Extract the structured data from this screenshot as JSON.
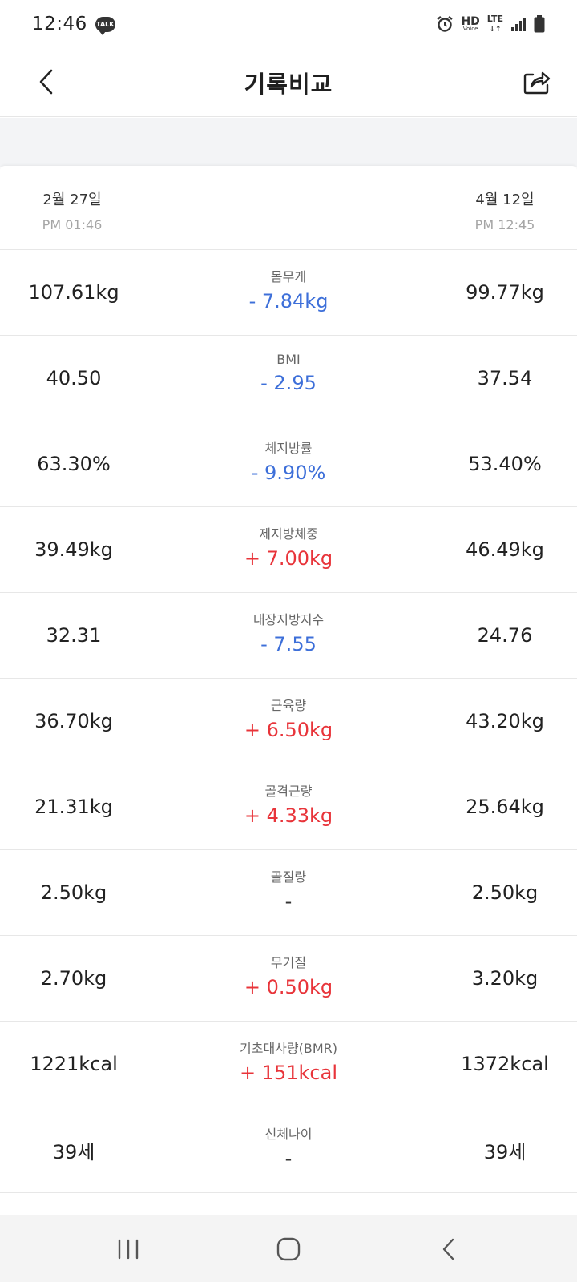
{
  "status_bar": {
    "time": "12:46",
    "talk_badge": "TALK",
    "hd_label": "HD",
    "hd_sub": "Voice",
    "network": "LTE"
  },
  "header": {
    "title": "기록비교"
  },
  "compare": {
    "left_date": "2월 27일",
    "left_time": "PM 01:46",
    "right_date": "4월 12일",
    "right_time": "PM 12:45"
  },
  "metrics": [
    {
      "label": "몸무게",
      "left": "107.61kg",
      "diff": "- 7.84kg",
      "right": "99.77kg",
      "trend": "down"
    },
    {
      "label": "BMI",
      "left": "40.50",
      "diff": "- 2.95",
      "right": "37.54",
      "trend": "down"
    },
    {
      "label": "체지방률",
      "left": "63.30%",
      "diff": "- 9.90%",
      "right": "53.40%",
      "trend": "down"
    },
    {
      "label": "제지방체중",
      "left": "39.49kg",
      "diff": "+ 7.00kg",
      "right": "46.49kg",
      "trend": "up"
    },
    {
      "label": "내장지방지수",
      "left": "32.31",
      "diff": "- 7.55",
      "right": "24.76",
      "trend": "down"
    },
    {
      "label": "근육량",
      "left": "36.70kg",
      "diff": "+ 6.50kg",
      "right": "43.20kg",
      "trend": "up"
    },
    {
      "label": "골격근량",
      "left": "21.31kg",
      "diff": "+ 4.33kg",
      "right": "25.64kg",
      "trend": "up"
    },
    {
      "label": "골질량",
      "left": "2.50kg",
      "diff": "-",
      "right": "2.50kg",
      "trend": "none"
    },
    {
      "label": "무기질",
      "left": "2.70kg",
      "diff": "+ 0.50kg",
      "right": "3.20kg",
      "trend": "up"
    },
    {
      "label": "기초대사량(BMR)",
      "left": "1221kcal",
      "diff": "+ 151kcal",
      "right": "1372kcal",
      "trend": "up"
    },
    {
      "label": "신체나이",
      "left": "39세",
      "diff": "-",
      "right": "39세",
      "trend": "none"
    }
  ],
  "colors": {
    "decrease": "#3d6fd9",
    "increase": "#e8343a",
    "divider": "#e7e7e7"
  },
  "icons": {
    "back": "chevron-left-icon",
    "share": "share-icon",
    "nav_recents": "recents-icon",
    "nav_home": "home-icon",
    "nav_back": "back-icon"
  }
}
